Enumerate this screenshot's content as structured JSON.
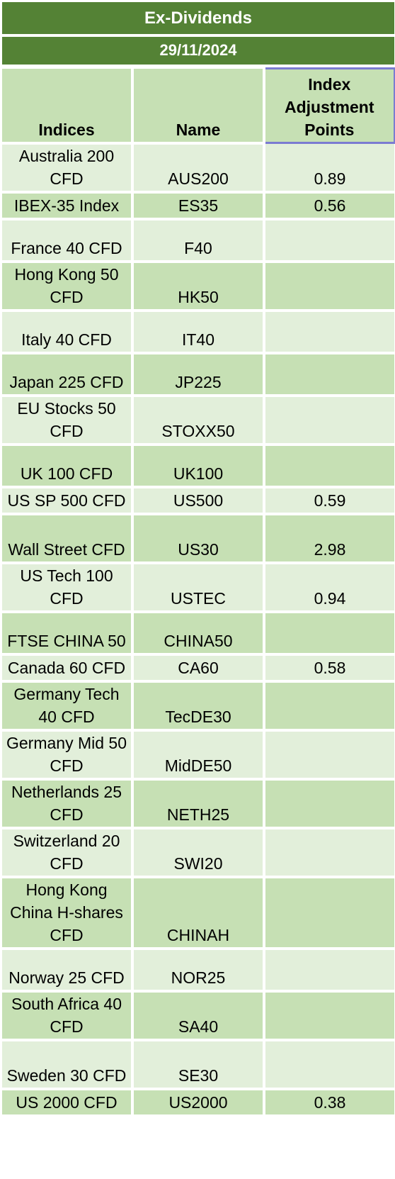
{
  "title": "Ex-Dividends",
  "date": "29/11/2024",
  "headers": {
    "indices": "Indices",
    "name": "Name",
    "adjustment": "Index Adjustment Points"
  },
  "colors": {
    "banner": "#548235",
    "row_dark": "#c6e0b4",
    "row_light": "#e2efda",
    "selection_border": "#7b7bd1"
  },
  "rows": [
    {
      "index": "Australia 200 CFD",
      "name": "AUS200",
      "points": "0.89"
    },
    {
      "index": "IBEX-35 Index",
      "name": "ES35",
      "points": "0.56"
    },
    {
      "index": "France 40 CFD",
      "name": "F40",
      "points": ""
    },
    {
      "index": "Hong Kong 50 CFD",
      "name": "HK50",
      "points": ""
    },
    {
      "index": "Italy 40 CFD",
      "name": "IT40",
      "points": ""
    },
    {
      "index": "Japan 225 CFD",
      "name": "JP225",
      "points": ""
    },
    {
      "index": "EU Stocks 50 CFD",
      "name": "STOXX50",
      "points": ""
    },
    {
      "index": "UK 100 CFD",
      "name": "UK100",
      "points": ""
    },
    {
      "index": "US SP 500 CFD",
      "name": "US500",
      "points": "0.59"
    },
    {
      "index": "Wall Street CFD",
      "name": "US30",
      "points": "2.98"
    },
    {
      "index": "US Tech 100 CFD",
      "name": "USTEC",
      "points": "0.94"
    },
    {
      "index": "FTSE CHINA 50",
      "name": "CHINA50",
      "points": ""
    },
    {
      "index": "Canada 60 CFD",
      "name": "CA60",
      "points": "0.58"
    },
    {
      "index": "Germany Tech 40 CFD",
      "name": "TecDE30",
      "points": ""
    },
    {
      "index": "Germany Mid 50 CFD",
      "name": "MidDE50",
      "points": ""
    },
    {
      "index": "Netherlands 25 CFD",
      "name": "NETH25",
      "points": ""
    },
    {
      "index": "Switzerland 20 CFD",
      "name": "SWI20",
      "points": ""
    },
    {
      "index": "Hong Kong China H-shares CFD",
      "name": "CHINAH",
      "points": ""
    },
    {
      "index": "Norway 25 CFD",
      "name": "NOR25",
      "points": ""
    },
    {
      "index": "South Africa 40 CFD",
      "name": "SA40",
      "points": ""
    },
    {
      "index": "Sweden 30 CFD",
      "name": "SE30",
      "points": ""
    },
    {
      "index": "US 2000 CFD",
      "name": "US2000",
      "points": "0.38"
    }
  ]
}
